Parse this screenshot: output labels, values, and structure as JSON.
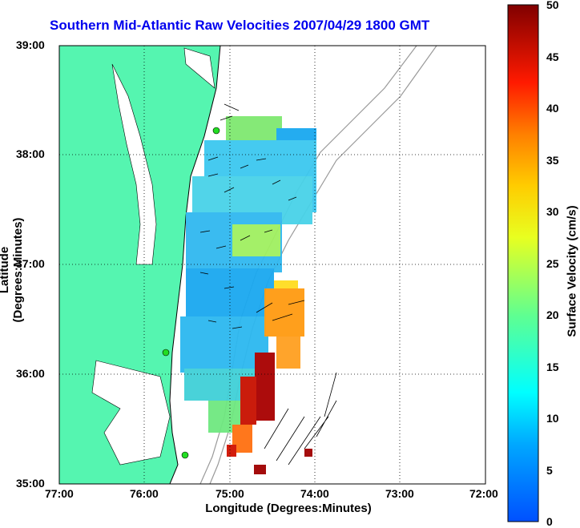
{
  "title": "Southern Mid-Atlantic Raw Velocities 2007/04/29 1800 GMT",
  "axes": {
    "xlabel": "Longitude (Degrees:Minutes)",
    "ylabel": "Latitude (Degrees:Minutes)",
    "x_ticks": [
      "77:00",
      "76:00",
      "75:00",
      "74:00",
      "73:00",
      "72:00"
    ],
    "y_ticks": [
      "39:00",
      "38:00",
      "37:00",
      "36:00",
      "35:00"
    ]
  },
  "colorbar": {
    "label": "Surface Velocity (cm/s)",
    "ticks": [
      "50",
      "45",
      "40",
      "35",
      "30",
      "25",
      "20",
      "15",
      "10",
      "5",
      "0"
    ],
    "range": [
      0,
      50
    ]
  },
  "colors": {
    "land": "#55f5b0",
    "title": "#0000ee",
    "station_marker": "#22dd22",
    "bathymetry": "#999999"
  },
  "stations": 3
}
